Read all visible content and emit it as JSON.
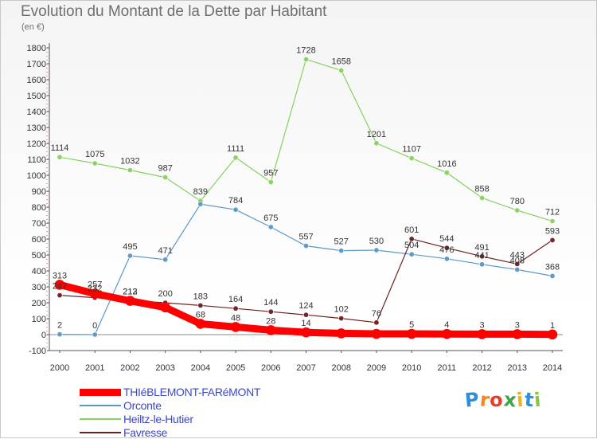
{
  "chart_data": {
    "type": "line",
    "title": "Evolution du Montant de la Dette par Habitant",
    "unit": "(en €)",
    "x": [
      "2000",
      "2001",
      "2002",
      "2003",
      "2004",
      "2005",
      "2006",
      "2007",
      "2008",
      "2009",
      "2010",
      "2011",
      "2012",
      "2013",
      "2014"
    ],
    "ylim": [
      -100,
      1800
    ],
    "yticks": [
      "-100",
      "0",
      "100",
      "200",
      "300",
      "400",
      "500",
      "600",
      "700",
      "800",
      "900",
      "1000",
      "1100",
      "1200",
      "1300",
      "1400",
      "1500",
      "1600",
      "1700",
      "1800"
    ],
    "grid": false,
    "legend_position": "bottom-left",
    "series": [
      {
        "name": "THIéBLEMONT-FARéMONT",
        "color": "#ff0000",
        "values": [
          313,
          257,
          212,
          171,
          68,
          48,
          28,
          14,
          8,
          5,
          5,
          4,
          3,
          3,
          1
        ],
        "labels": [
          "313",
          "257",
          "212",
          "",
          "68",
          "48",
          "28",
          "14",
          "",
          "",
          "5",
          "4",
          "3",
          "3",
          "1"
        ]
      },
      {
        "name": "Orconte",
        "color": "#5a98c8",
        "values": [
          2,
          0,
          495,
          471,
          819,
          784,
          675,
          557,
          527,
          530,
          504,
          476,
          441,
          408,
          368
        ],
        "labels": [
          "2",
          "0",
          "495",
          "471",
          "",
          "784",
          "675",
          "557",
          "527",
          "530",
          "504",
          "476",
          "441",
          "408",
          "368"
        ]
      },
      {
        "name": "Heiltz-le-Hutier",
        "color": "#88d060",
        "values": [
          1114,
          1075,
          1032,
          987,
          839,
          1111,
          957,
          1728,
          1658,
          1201,
          1107,
          1016,
          858,
          780,
          712
        ],
        "labels": [
          "1114",
          "1075",
          "1032",
          "987",
          "839",
          "1111",
          "957",
          "1728",
          "1658",
          "1201",
          "1107",
          "1016",
          "858",
          "780",
          "712"
        ]
      },
      {
        "name": "Favresse",
        "color": "#6b2020",
        "values": [
          247,
          232,
          213,
          200,
          183,
          164,
          144,
          124,
          102,
          76,
          601,
          544,
          491,
          443,
          593
        ],
        "labels": [
          "247",
          "232",
          "213",
          "200",
          "183",
          "164",
          "144",
          "124",
          "102",
          "76",
          "601",
          "544",
          "491",
          "443",
          "593"
        ]
      }
    ]
  },
  "logo": {
    "text": "Proxiti",
    "letters": [
      "P",
      "r",
      "o",
      "x",
      "i",
      "t",
      "i"
    ],
    "colors": [
      "#2e8fd8",
      "#f08a1c",
      "#e63c28",
      "#3aa848",
      "#f0b020",
      "#2e8fd8",
      "#8cc63f"
    ]
  }
}
